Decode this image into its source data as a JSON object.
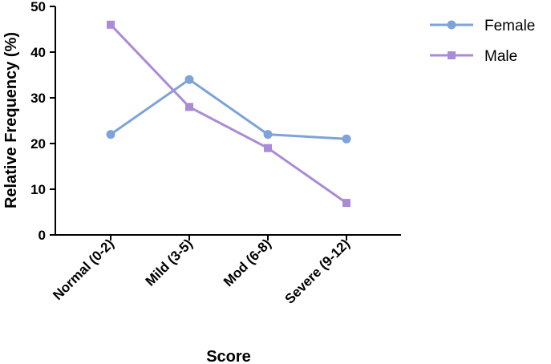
{
  "chart_data": {
    "type": "line",
    "categories": [
      "Normal (0-2)",
      "Mild (3-5)",
      "Mod (6-8)",
      "Severe (9-12)"
    ],
    "series": [
      {
        "name": "Female",
        "values": [
          22,
          34,
          22,
          21
        ],
        "color": "#7da3d8",
        "marker": "circle"
      },
      {
        "name": "Male",
        "values": [
          46,
          28,
          19,
          7
        ],
        "color": "#a98bd6",
        "marker": "square"
      }
    ],
    "xlabel": "Score",
    "ylabel": "Relative Frequency (%)",
    "ylim": [
      0,
      50
    ],
    "yticks": [
      0,
      10,
      20,
      30,
      40,
      50
    ],
    "grid": false,
    "legend_position": "top-right"
  }
}
